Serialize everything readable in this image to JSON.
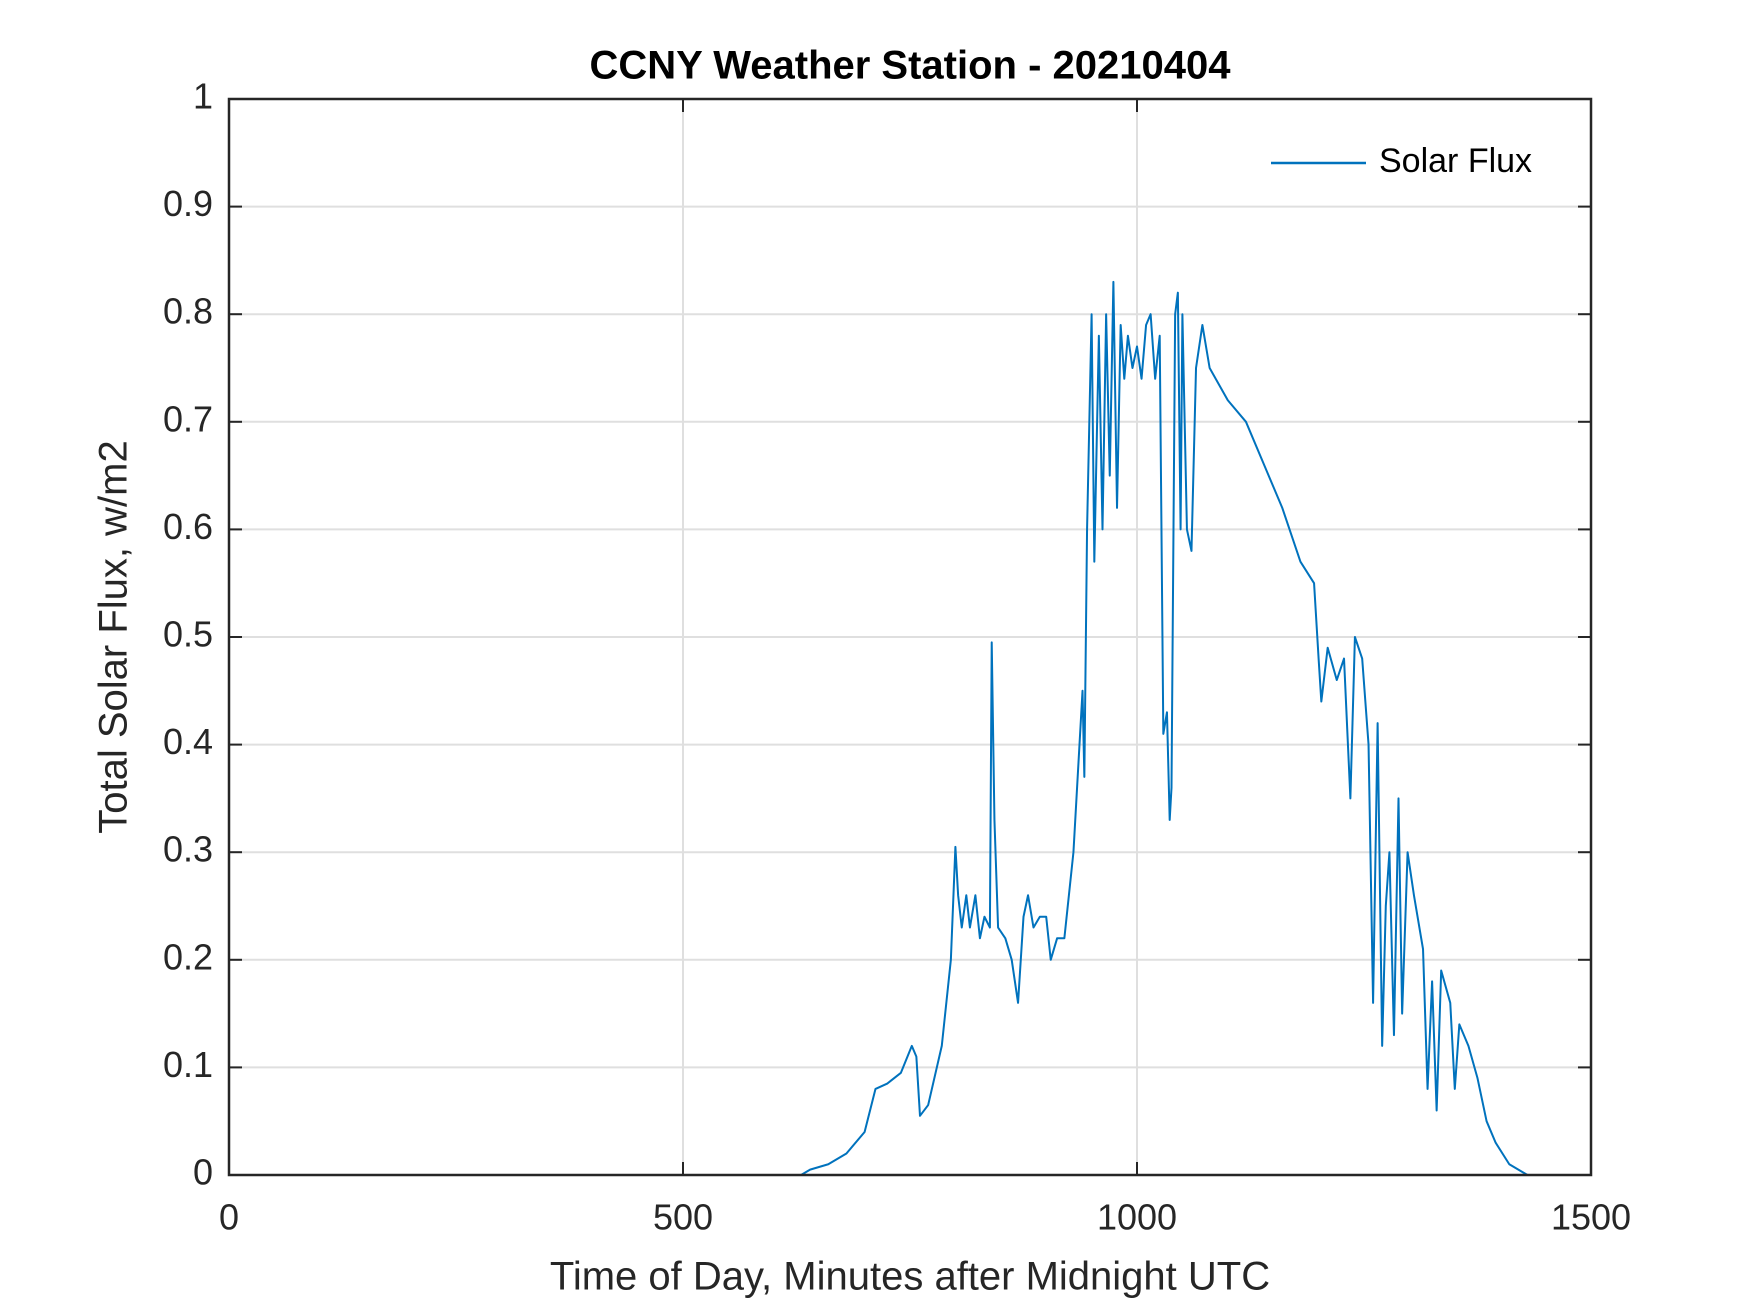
{
  "chart_data": {
    "type": "line",
    "title": "CCNY Weather Station - 20210404",
    "xlabel": "Time of Day, Minutes after Midnight UTC",
    "ylabel": "Total Solar Flux, w/m2",
    "x": [
      0,
      100,
      200,
      300,
      400,
      500,
      600,
      630,
      640,
      660,
      680,
      700,
      712,
      725,
      740,
      752,
      757,
      761,
      770,
      785,
      795,
      800,
      803,
      807,
      812,
      816,
      822,
      827,
      832,
      838,
      840,
      843,
      847,
      855,
      862,
      869,
      875,
      880,
      886,
      893,
      900,
      905,
      912,
      920,
      930,
      940,
      942,
      945,
      950,
      953,
      958,
      962,
      966,
      970,
      974,
      978,
      982,
      986,
      990,
      995,
      1000,
      1005,
      1010,
      1015,
      1020,
      1025,
      1029,
      1033,
      1036,
      1038,
      1042,
      1045,
      1048,
      1050,
      1055,
      1060,
      1065,
      1072,
      1080,
      1100,
      1120,
      1140,
      1160,
      1180,
      1195,
      1200,
      1203,
      1210,
      1220,
      1228,
      1235,
      1240,
      1248,
      1255,
      1260,
      1265,
      1270,
      1274,
      1278,
      1283,
      1288,
      1292,
      1298,
      1305,
      1315,
      1320,
      1325,
      1330,
      1335,
      1345,
      1350,
      1355,
      1365,
      1375,
      1385,
      1395,
      1410,
      1430,
      1440
    ],
    "series": [
      {
        "name": "Solar Flux",
        "color": "#0072bd",
        "values": [
          0,
          0,
          0,
          0,
          0,
          0,
          0,
          0,
          0.005,
          0.01,
          0.02,
          0.04,
          0.08,
          0.085,
          0.095,
          0.12,
          0.11,
          0.055,
          0.065,
          0.12,
          0.2,
          0.305,
          0.26,
          0.23,
          0.26,
          0.23,
          0.26,
          0.22,
          0.24,
          0.23,
          0.495,
          0.33,
          0.23,
          0.22,
          0.2,
          0.16,
          0.24,
          0.26,
          0.23,
          0.24,
          0.24,
          0.2,
          0.22,
          0.22,
          0.3,
          0.45,
          0.37,
          0.6,
          0.8,
          0.57,
          0.78,
          0.6,
          0.8,
          0.65,
          0.83,
          0.62,
          0.79,
          0.74,
          0.78,
          0.75,
          0.77,
          0.74,
          0.79,
          0.8,
          0.74,
          0.78,
          0.41,
          0.43,
          0.33,
          0.36,
          0.8,
          0.82,
          0.6,
          0.8,
          0.6,
          0.58,
          0.75,
          0.79,
          0.75,
          0.72,
          0.7,
          0.66,
          0.62,
          0.57,
          0.55,
          0.48,
          0.44,
          0.49,
          0.46,
          0.48,
          0.35,
          0.5,
          0.48,
          0.4,
          0.16,
          0.42,
          0.12,
          0.25,
          0.3,
          0.13,
          0.35,
          0.15,
          0.3,
          0.26,
          0.21,
          0.08,
          0.18,
          0.06,
          0.19,
          0.16,
          0.08,
          0.14,
          0.12,
          0.09,
          0.05,
          0.03,
          0.01,
          0,
          0
        ]
      }
    ],
    "xlim": [
      0,
      1500
    ],
    "xticks": [
      0,
      500,
      1000,
      1500
    ],
    "ylim": [
      0,
      1
    ],
    "yticks": [
      0,
      0.1,
      0.2,
      0.3,
      0.4,
      0.5,
      0.6,
      0.7,
      0.8,
      0.9,
      1
    ],
    "grid": true,
    "legend": "northeast"
  }
}
